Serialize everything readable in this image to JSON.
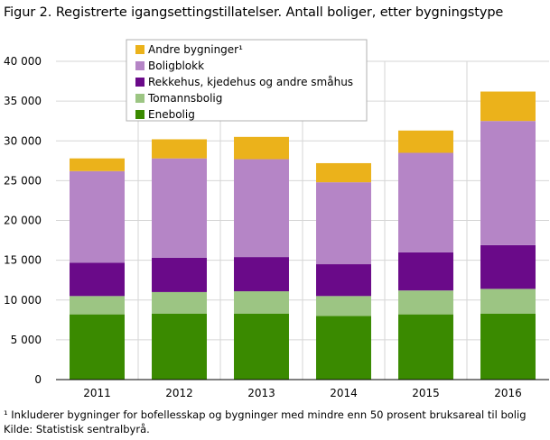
{
  "title": "Figur 2. Registrerte igangsettingstillatelser. Antall boliger, etter bygningstype",
  "footnote": "¹ Inkluderer bygninger for bofellesskap og bygninger med mindre enn 50 prosent bruksareal til bolig",
  "source": "Kilde: Statistisk sentralbyrå.",
  "chart_data": {
    "type": "bar",
    "stacked": true,
    "title": "Figur 2. Registrerte igangsettingstillatelser. Antall boliger, etter bygningstype",
    "categories": [
      "2011",
      "2012",
      "2013",
      "2014",
      "2015",
      "2016"
    ],
    "ylim": [
      0,
      40000
    ],
    "yticks": [
      0,
      5000,
      10000,
      15000,
      20000,
      25000,
      30000,
      35000,
      40000
    ],
    "ytick_labels": [
      "0",
      "5 000",
      "10 000",
      "15 000",
      "20 000",
      "25 000",
      "30 000",
      "35 000",
      "40 000"
    ],
    "grid": true,
    "legend_position": "top-left",
    "series": [
      {
        "name": "Enebolig",
        "color": "#3a8a00",
        "values": [
          8200,
          8300,
          8300,
          8000,
          8200,
          8300
        ]
      },
      {
        "name": "Tomannsbolig",
        "color": "#9cc583",
        "values": [
          2300,
          2700,
          2800,
          2500,
          3000,
          3100
        ]
      },
      {
        "name": "Rekkehus, kjedehus og andre småhus",
        "color": "#6a0a89",
        "values": [
          4200,
          4300,
          4300,
          4000,
          4800,
          5500
        ]
      },
      {
        "name": "Boligblokk",
        "color": "#b585c6",
        "values": [
          11500,
          12500,
          12300,
          10300,
          12500,
          15600
        ]
      },
      {
        "name": "Andre bygninger¹",
        "color": "#ebb21b",
        "values": [
          1600,
          2400,
          2800,
          2400,
          2800,
          3700
        ]
      }
    ]
  }
}
